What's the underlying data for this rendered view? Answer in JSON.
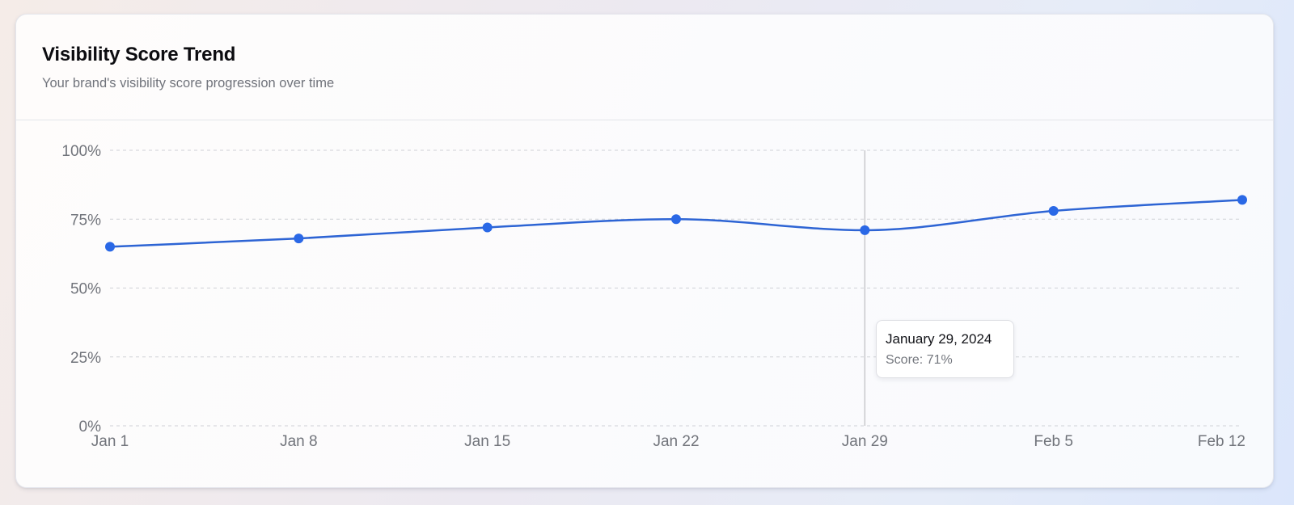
{
  "header": {
    "title": "Visibility Score Trend",
    "subtitle": "Your brand's visibility score progression over time"
  },
  "tooltip": {
    "date": "January 29, 2024",
    "score_text": "Score: 71%"
  },
  "colors": {
    "line": "#2d64d4",
    "point": "#2a68e6",
    "grid": "#cfd1d6",
    "crosshair": "#c8c9cc"
  },
  "chart_data": {
    "type": "line",
    "categories": [
      "Jan 1",
      "Jan 8",
      "Jan 15",
      "Jan 22",
      "Jan 29",
      "Feb 5",
      "Feb 12"
    ],
    "series": [
      {
        "values": [
          65,
          68,
          72,
          75,
          71,
          78,
          82
        ]
      }
    ],
    "y_ticks": [
      "0%",
      "25%",
      "50%",
      "75%",
      "100%"
    ],
    "ylim": [
      0,
      100
    ],
    "grid": true,
    "active_category": "Jan 29"
  }
}
